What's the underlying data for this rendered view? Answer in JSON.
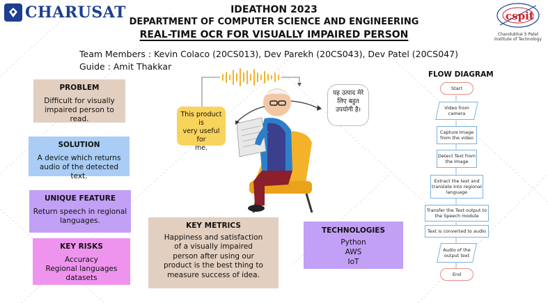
{
  "header": {
    "left_logo": "CHARUSAT",
    "right_logo": {
      "name": "cspit",
      "caption_line1": "Chandubhai S Patel",
      "caption_line2": "Institute of Technology"
    },
    "event": "IDEATHON 2023",
    "department": "DEPARTMENT OF COMPUTER SCIENCE AND ENGINEERING",
    "project_title": "REAL-TIME OCR FOR VISUALLY IMPAIRED PERSON"
  },
  "team": {
    "members_line": "Team Members :  Kevin Colaco (20CS013), Dev Parekh (20CS043), Dev Patel (20CS047)",
    "guide_line": "Guide : Amit Thakkar"
  },
  "cards": {
    "problem": {
      "heading": "PROBLEM",
      "line1": "Difficult for visually",
      "line2": "impaired person to read."
    },
    "solution": {
      "heading": "SOLUTION",
      "line1": "A device which returns",
      "line2": "audio of the detected text."
    },
    "unique": {
      "heading": "UNIQUE FEATURE",
      "line1": "Return speech in regional",
      "line2": "languages."
    },
    "risks": {
      "heading": "KEY RISKS",
      "line1": "Accuracy",
      "line2": "Regional languages",
      "line3": "datasets"
    },
    "metrics": {
      "heading": "KEY METRICS",
      "line1": "Happiness and satisfaction",
      "line2": "of a visually impaired",
      "line3": "person after using our",
      "line4": "product is the best thing to",
      "line5": "measure success of idea."
    },
    "tech": {
      "heading": "TECHNOLOGIES",
      "line1": "Python",
      "line2": "AWS",
      "line3": "IoT"
    }
  },
  "illustration": {
    "english_bubble": {
      "line1": "This product is",
      "line2": "very useful for",
      "line3": "me."
    },
    "hindi_bubble": {
      "line1": "यह उत्पाद मेरे",
      "line2": "लिए बहुत",
      "line3": "उपयोगी है।"
    },
    "colors": {
      "chair": "#f3b22a",
      "shirt": "#2e7fc9",
      "vest": "#3a3f8e",
      "pants": "#8b1f2b",
      "wave": "#f3b22a"
    }
  },
  "flow": {
    "title": "FLOW DIAGRAM",
    "start": "Start",
    "step1": "Video from camera",
    "step2": "Capture Image from the video",
    "step3": "Detect Text from the Image",
    "step4": "Extract the text and translate into regional language",
    "step5": "Transfer the Text output to the Speech module",
    "step6": "Text is converted to audio",
    "step7": "Audio of the output text",
    "end": "End"
  }
}
